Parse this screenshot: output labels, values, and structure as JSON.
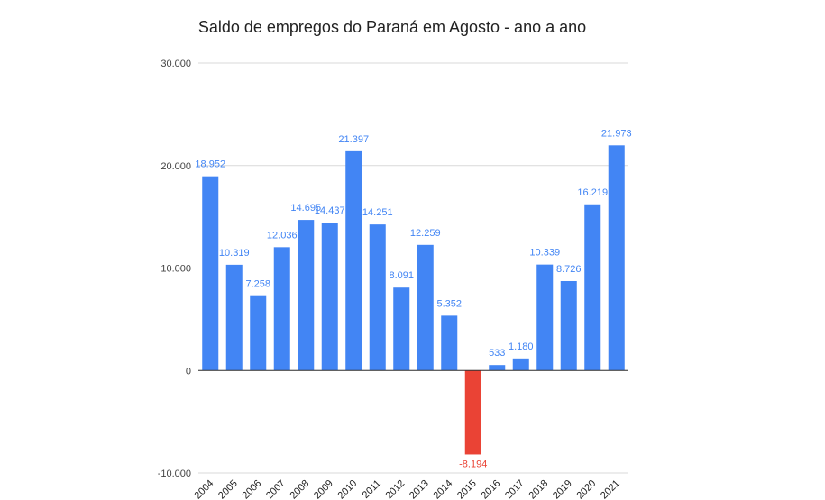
{
  "chart_data": {
    "type": "bar",
    "title": "Saldo de empregos do Paraná em Agosto - ano a ano",
    "xlabel": "",
    "ylabel": "",
    "ylim": [
      -10000,
      30000
    ],
    "yticks": [
      30000,
      20000,
      10000,
      0,
      -10000
    ],
    "ytick_labels": [
      "30.000",
      "20.000",
      "10.000",
      "0",
      "-10.000"
    ],
    "grid": true,
    "legend": "none",
    "categories": [
      "2004",
      "2005",
      "2006",
      "2007",
      "2008",
      "2009",
      "2010",
      "2011",
      "2012",
      "2013",
      "2014",
      "2015",
      "2016",
      "2017",
      "2018",
      "2019",
      "2020",
      "2021"
    ],
    "values": [
      18952,
      10319,
      7258,
      12036,
      14695,
      14437,
      21397,
      14251,
      8091,
      12259,
      5352,
      -8194,
      533,
      1180,
      10339,
      8726,
      16219,
      21973
    ],
    "labels": [
      "18.952",
      "10.319",
      "7.258",
      "12.036",
      "14.695",
      "14.437",
      "21.397",
      "14.251",
      "8.091",
      "12.259",
      "5.352",
      "-8.194",
      "533",
      "1.180",
      "10.339",
      "8.726",
      "16.219",
      "21.973"
    ],
    "colors": {
      "positive": "#4285f4",
      "negative": "#ea4335",
      "grid": "#d9d9d9",
      "axis": "#333333"
    }
  }
}
